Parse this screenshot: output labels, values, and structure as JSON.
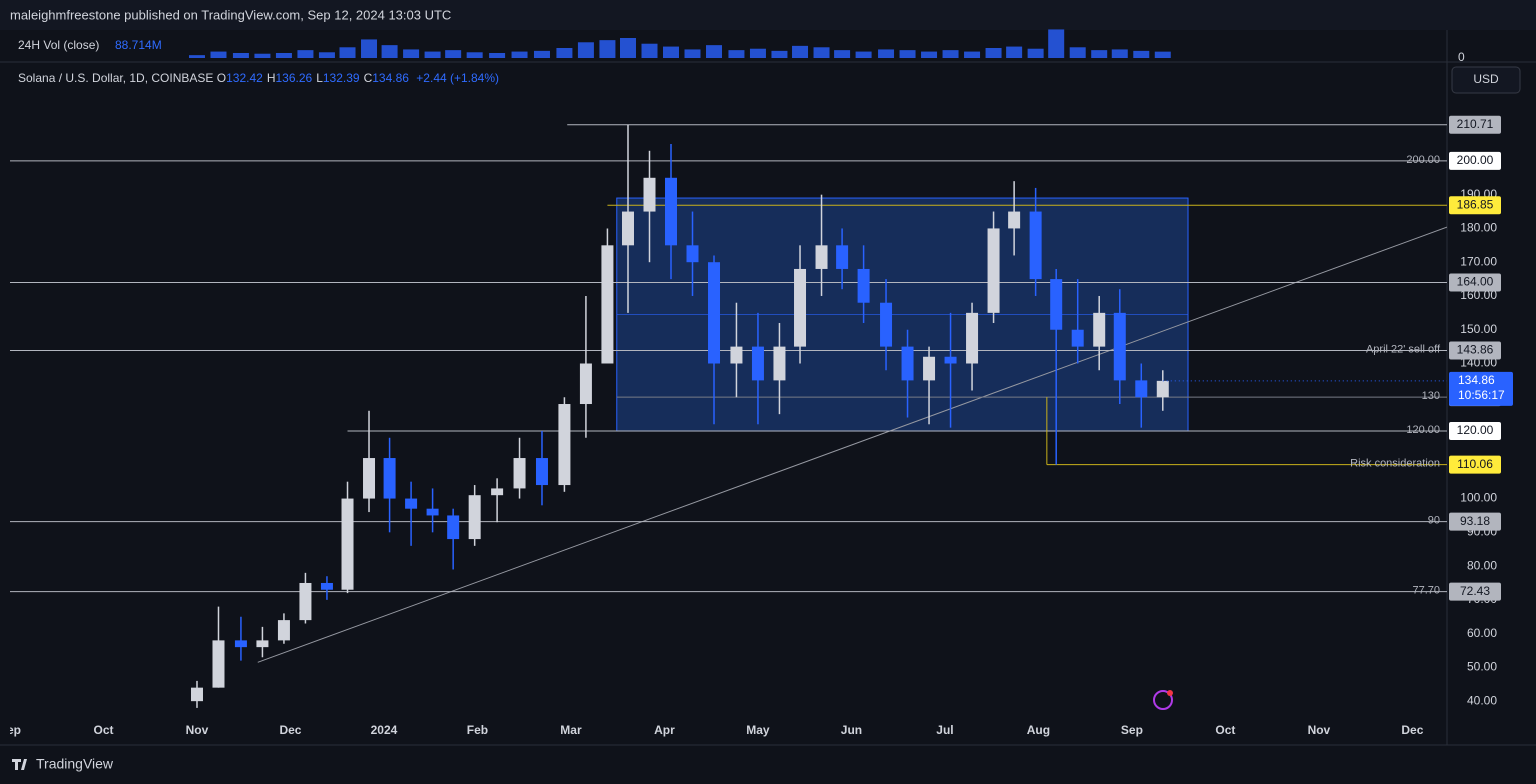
{
  "header": {
    "publisher": "maleighmfreestone published on TradingView.com, Sep 12, 2024 13:03 UTC"
  },
  "footer": {
    "brand": "TradingView"
  },
  "chart_data": {
    "type": "candlestick",
    "title": "Solana / U.S. Dollar, 1D, COINBASE",
    "ohlc_legend": {
      "labels": [
        "O",
        "H",
        "L",
        "C"
      ],
      "values": [
        132.42,
        136.26,
        132.39,
        134.86
      ],
      "change": "+2.44 (+1.84%)"
    },
    "currency": "USD",
    "x": [
      2.0,
      2.23,
      2.47,
      2.7,
      2.93,
      3.16,
      3.39,
      3.61,
      3.84,
      4.06,
      4.29,
      4.52,
      4.74,
      4.97,
      5.21,
      5.45,
      5.69,
      5.93,
      6.16,
      6.39,
      6.61,
      6.84,
      7.07,
      7.3,
      7.53,
      7.77,
      8.0,
      8.23,
      8.45,
      8.68,
      8.9,
      9.13,
      9.37,
      9.6,
      9.83,
      10.06,
      10.29,
      10.52,
      10.74,
      10.97,
      11.19,
      11.42,
      11.65,
      11.87,
      12.1,
      12.33
    ],
    "open": [
      40,
      44,
      58,
      56,
      58,
      64,
      75,
      73,
      100,
      112,
      100,
      97,
      95,
      88,
      101,
      103,
      112,
      104,
      128,
      140,
      175,
      185,
      195,
      175,
      170,
      140,
      145,
      135,
      145,
      168,
      175,
      168,
      158,
      145,
      135,
      142,
      140,
      155,
      180,
      185,
      165,
      150,
      145,
      155,
      135,
      130
    ],
    "high": [
      46,
      68,
      65,
      62,
      66,
      78,
      77,
      105,
      126,
      118,
      105,
      103,
      97,
      104,
      106,
      118,
      120,
      130,
      160,
      180,
      210.71,
      203,
      205,
      185,
      172,
      158,
      155,
      152,
      175,
      190,
      180,
      175,
      165,
      150,
      145,
      155,
      158,
      185,
      194,
      192,
      168,
      165,
      160,
      162,
      140,
      138
    ],
    "low": [
      38,
      44,
      52,
      53,
      57,
      63,
      70,
      72,
      96,
      90,
      86,
      90,
      79,
      86,
      93,
      100,
      98,
      102,
      118,
      140,
      155,
      170,
      165,
      160,
      122,
      130,
      122,
      125,
      140,
      160,
      162,
      152,
      138,
      124,
      122,
      121,
      132,
      152,
      172,
      160,
      110,
      140,
      138,
      128,
      121,
      126
    ],
    "close": [
      44,
      58,
      56,
      58,
      64,
      75,
      73,
      100,
      112,
      100,
      97,
      95,
      88,
      101,
      103,
      112,
      104,
      128,
      140,
      175,
      185,
      195,
      175,
      170,
      140,
      145,
      135,
      145,
      168,
      175,
      168,
      158,
      145,
      135,
      142,
      140,
      155,
      180,
      185,
      165,
      150,
      145,
      155,
      135,
      130,
      134.86
    ],
    "up_color": "#d1d4dc",
    "down_color": "#2962ff",
    "grid": false,
    "xlim": [
      0,
      15.37
    ],
    "xticks": [
      {
        "value": 0,
        "label": "Sep"
      },
      {
        "value": 1,
        "label": "Oct"
      },
      {
        "value": 2,
        "label": "Nov"
      },
      {
        "value": 3,
        "label": "Dec"
      },
      {
        "value": 4,
        "label": "2024"
      },
      {
        "value": 5,
        "label": "Feb"
      },
      {
        "value": 6,
        "label": "Mar"
      },
      {
        "value": 7,
        "label": "Apr"
      },
      {
        "value": 8,
        "label": "May"
      },
      {
        "value": 9,
        "label": "Jun"
      },
      {
        "value": 10,
        "label": "Jul"
      },
      {
        "value": 11,
        "label": "Aug"
      },
      {
        "value": 12,
        "label": "Sep"
      },
      {
        "value": 13,
        "label": "Oct"
      },
      {
        "value": 14,
        "label": "Nov"
      },
      {
        "value": 15,
        "label": "Dec"
      }
    ],
    "ylim": [
      35.9,
      221
    ],
    "yticks": [
      {
        "value": 40,
        "label": "40.00"
      },
      {
        "value": 50,
        "label": "50.00"
      },
      {
        "value": 60,
        "label": "60.00"
      },
      {
        "value": 70,
        "label": "70.00"
      },
      {
        "value": 80,
        "label": "80.00"
      },
      {
        "value": 90,
        "label": "90.00"
      },
      {
        "value": 100,
        "label": "100.00"
      },
      {
        "value": 110,
        "label": "110.00"
      },
      {
        "value": 120,
        "label": "120.00"
      },
      {
        "value": 130,
        "label": "130.00"
      },
      {
        "value": 140,
        "label": "140.00"
      },
      {
        "value": 150,
        "label": "150.00"
      },
      {
        "value": 160,
        "label": "160.00"
      },
      {
        "value": 170,
        "label": "170.00"
      },
      {
        "value": 180,
        "label": "180.00"
      },
      {
        "value": 190,
        "label": "190.00"
      },
      {
        "value": 200,
        "label": "200.00"
      }
    ],
    "volume": {
      "name": "24H Vol (close)",
      "last": "88.714M",
      "color": "#2962ff",
      "ylim": [
        0,
        420
      ],
      "yticks": [
        0
      ],
      "values": [
        40,
        90,
        70,
        60,
        70,
        110,
        80,
        150,
        260,
        180,
        120,
        90,
        110,
        80,
        70,
        90,
        100,
        140,
        220,
        250,
        280,
        200,
        160,
        120,
        180,
        110,
        130,
        100,
        170,
        150,
        110,
        90,
        120,
        110,
        90,
        110,
        90,
        140,
        160,
        130,
        400,
        150,
        110,
        120,
        100,
        89
      ]
    },
    "last_price": {
      "value": 134.86,
      "countdown": "10:56:17"
    },
    "levels": [
      {
        "value": 210.71,
        "label": "210.71",
        "start": 5.96,
        "line": "#b2b5be",
        "box": "#b2b5be"
      },
      {
        "value": 200,
        "label": "200.00",
        "start": 0,
        "line": "#b2b5be",
        "box": "#ffffff",
        "note": "200.00"
      },
      {
        "value": 186.85,
        "label": "186.85",
        "start": 6.39,
        "line": "#c9b11a",
        "box": "#ffeb3b"
      },
      {
        "value": 164,
        "label": "164.00",
        "start": 0,
        "line": "#b2b5be",
        "box": "#b2b5be"
      },
      {
        "value": 143.86,
        "label": "143.86",
        "start": 0,
        "line": "#b2b5be",
        "box": "#b2b5be",
        "note": "April 22' sell off"
      },
      {
        "value": 130.05,
        "label": "130.05",
        "start": 6.49,
        "line": "#787b86",
        "box": "#b2b5be",
        "note": "130"
      },
      {
        "value": 120,
        "label": "120.00",
        "start": 3.61,
        "line": "#b2b5be",
        "box": "#ffffff",
        "note": "120.00"
      },
      {
        "value": 110.06,
        "label": "110.06",
        "start": 11.09,
        "line": "#c9b11a",
        "box": "#ffeb3b",
        "note": "Risk consideration"
      },
      {
        "value": 93.18,
        "label": "93.18",
        "start": 0,
        "line": "#b2b5be",
        "box": "#b2b5be",
        "note": "90"
      },
      {
        "value": 72.43,
        "label": "72.43",
        "start": 0,
        "line": "#b2b5be",
        "box": "#b2b5be",
        "note": "77.70"
      }
    ],
    "range_box": {
      "top": 189,
      "bottom": 120,
      "start": 6.49,
      "end": 12.6,
      "color": "#1e4fa8"
    },
    "trendline": {
      "x": [
        2.65,
        15.37
      ],
      "y": [
        51.5,
        180.4
      ],
      "color": "#9598a1"
    }
  }
}
